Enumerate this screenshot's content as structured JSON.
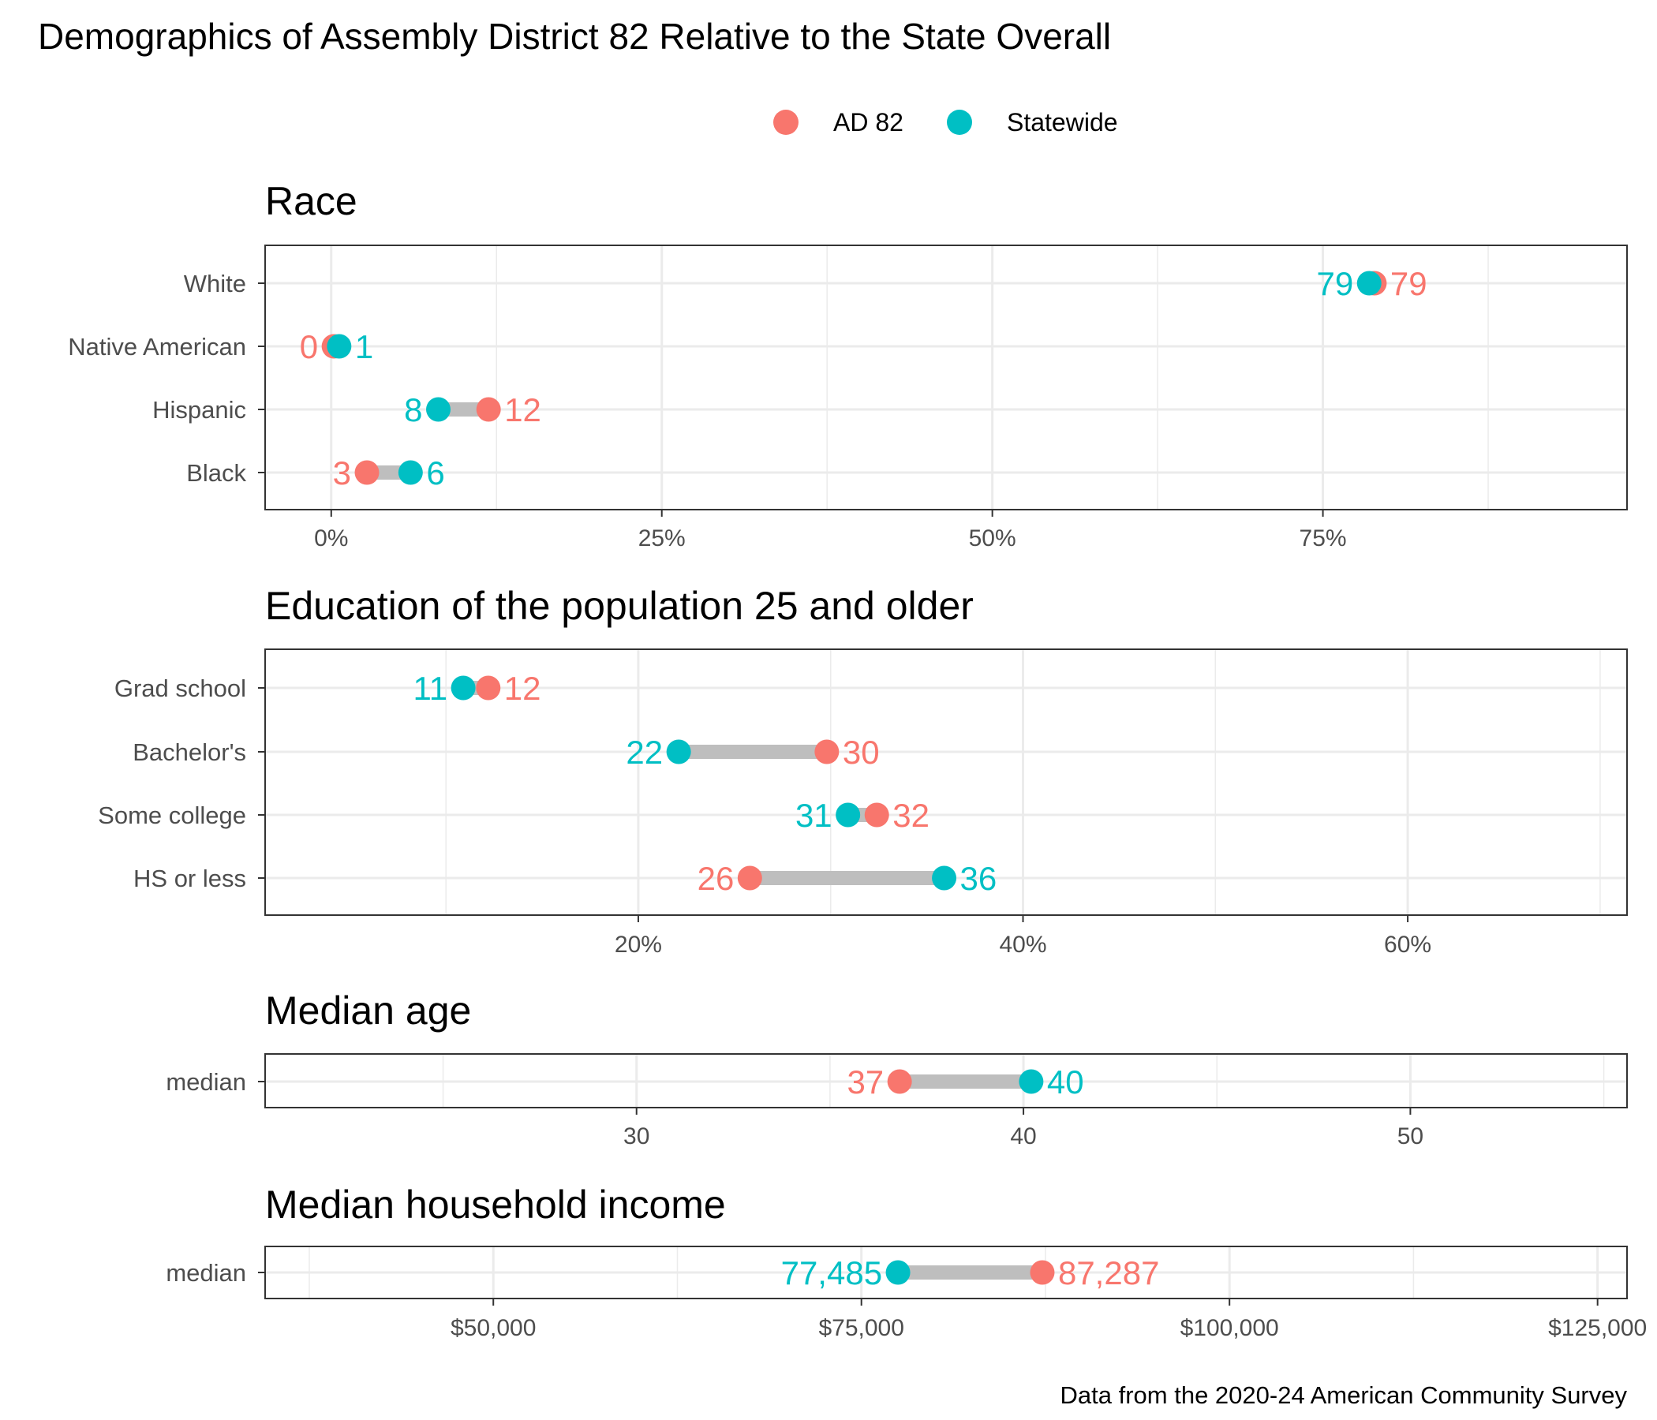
{
  "title": "Demographics of Assembly District 82 Relative to the State Overall",
  "caption": "Data from the 2020-24 American Community Survey",
  "colors": {
    "district": "#F8766D",
    "statewide": "#00BFC4",
    "segment": "#BEBEBE",
    "grid": "#EBEBEB",
    "frame": "#333333"
  },
  "legend": {
    "position": "top",
    "items": [
      "AD 82",
      "Statewide"
    ]
  },
  "chart_data": [
    {
      "type": "dumbbell",
      "title": "Race",
      "xlim": [
        -5,
        98
      ],
      "ticks": [
        0,
        25,
        50,
        75
      ],
      "tick_labels": [
        "0%",
        "25%",
        "50%",
        "75%"
      ],
      "minor_ticks": [
        12.5,
        37.5,
        62.5,
        87.5
      ],
      "categories": [
        "White",
        "Native American",
        "Hispanic",
        "Black"
      ],
      "series": [
        {
          "name": "AD 82",
          "values": [
            78.9,
            0.2,
            11.9,
            2.7
          ],
          "labels": [
            "79",
            "0",
            "12",
            "3"
          ]
        },
        {
          "name": "Statewide",
          "values": [
            78.5,
            0.6,
            8.1,
            6.0
          ],
          "labels": [
            "79",
            "1",
            "8",
            "6"
          ]
        }
      ]
    },
    {
      "type": "dumbbell",
      "title": "Education of the population 25 and older",
      "xlim": [
        0.6,
        71.4
      ],
      "ticks": [
        20,
        40,
        60
      ],
      "tick_labels": [
        "20%",
        "40%",
        "60%"
      ],
      "minor_ticks": [
        10,
        30,
        50,
        70
      ],
      "categories": [
        "Grad school",
        "Bachelor's",
        "Some college",
        "HS or less"
      ],
      "series": [
        {
          "name": "AD 82",
          "values": [
            12.2,
            29.8,
            32.4,
            25.8
          ],
          "labels": [
            "12",
            "30",
            "32",
            "26"
          ]
        },
        {
          "name": "Statewide",
          "values": [
            10.9,
            22.1,
            30.9,
            35.9
          ],
          "labels": [
            "11",
            "22",
            "31",
            "36"
          ]
        }
      ]
    },
    {
      "type": "dumbbell",
      "title": "Median age",
      "xlim": [
        20.4,
        55.6
      ],
      "ticks": [
        30,
        40,
        50
      ],
      "tick_labels": [
        "30",
        "40",
        "50"
      ],
      "minor_ticks": [
        25,
        35,
        45,
        55
      ],
      "categories": [
        "median"
      ],
      "series": [
        {
          "name": "AD 82",
          "values": [
            36.8
          ],
          "labels": [
            "37"
          ]
        },
        {
          "name": "Statewide",
          "values": [
            40.2
          ],
          "labels": [
            "40"
          ]
        }
      ]
    },
    {
      "type": "dumbbell",
      "title": "Median household income",
      "xlim": [
        34500,
        127000
      ],
      "ticks": [
        50000,
        75000,
        100000,
        125000
      ],
      "tick_labels": [
        "$50,000",
        "$75,000",
        "$100,000",
        "$125,000"
      ],
      "minor_ticks": [
        37500,
        62500,
        87500,
        112500
      ],
      "categories": [
        "median"
      ],
      "series": [
        {
          "name": "AD 82",
          "values": [
            87287
          ],
          "labels": [
            "87,287"
          ]
        },
        {
          "name": "Statewide",
          "values": [
            77485
          ],
          "labels": [
            "77,485"
          ]
        }
      ]
    }
  ]
}
